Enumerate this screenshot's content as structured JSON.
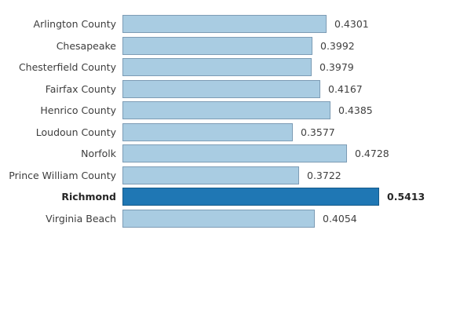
{
  "chart_data": {
    "type": "bar",
    "orientation": "horizontal",
    "title": "",
    "xlabel": "",
    "ylabel": "",
    "grid": false,
    "legend": false,
    "xlim": [
      0,
      0.6
    ],
    "categories": [
      "Arlington County",
      "Chesapeake",
      "Chesterfield County",
      "Fairfax County",
      "Henrico County",
      "Loudoun County",
      "Norfolk",
      "Prince William County",
      "Richmond",
      "Virginia Beach"
    ],
    "values": [
      0.4301,
      0.3992,
      0.3979,
      0.4167,
      0.4385,
      0.3577,
      0.4728,
      0.3722,
      0.5413,
      0.4054
    ],
    "value_labels": [
      "0.4301",
      "0.3992",
      "0.3979",
      "0.4167",
      "0.4385",
      "0.3577",
      "0.4728",
      "0.3722",
      "0.5413",
      "0.4054"
    ],
    "highlighted_category": "Richmond",
    "highlight_index": 8,
    "colors": {
      "bar_fill": "#a9cce2",
      "bar_border": "#7d9cb5",
      "highlight_fill": "#1f77b4",
      "highlight_border": "#155a8a",
      "category_text": "#3d3d3d",
      "value_text": "#404040",
      "highlight_text": "#262626",
      "background": "#ffffff"
    }
  }
}
